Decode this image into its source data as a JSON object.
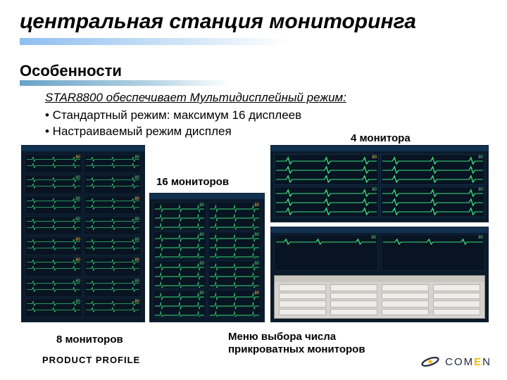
{
  "title": "центральная станция мониторинга",
  "subhead": "Особенности",
  "body": {
    "multi": "STAR8800 обеспечивает Мультидисплейный режим:",
    "b1": "• Стандартный режим: максимум 16 дисплеев",
    "b2": "• Настраиваемый режим дисплея"
  },
  "labels": {
    "m4": "4 монитора",
    "m16": "16 мониторов",
    "m8": "8 мониторов",
    "menu": "Меню выбора числа прикроватных мониторов"
  },
  "footer": "PRODUCT  PROFILE",
  "logo": {
    "brand_pre": "COM",
    "brand_e": "E",
    "brand_post": "N"
  },
  "colors": {
    "bg": "#ffffff",
    "title_grad_from": "#8fbff0",
    "sub_grad_from": "#6aa3c8",
    "screen_bg": "#0b1a2a",
    "cell_bg": "#081422",
    "wave_color": "#38e07a",
    "dialog_bg": "#d6d3cf",
    "logo_accent": "#ffb400"
  },
  "screenshots": {
    "s16": {
      "cols": 2,
      "rows": 8
    },
    "s8": {
      "cols": 2,
      "rows": 4
    },
    "s4": {
      "cols": 2,
      "rows": 2
    },
    "menu_dialog_cells": 16
  },
  "fontsizes": {
    "title": 30,
    "subhead": 22,
    "body": 17,
    "labels": 15,
    "footer": 13
  }
}
